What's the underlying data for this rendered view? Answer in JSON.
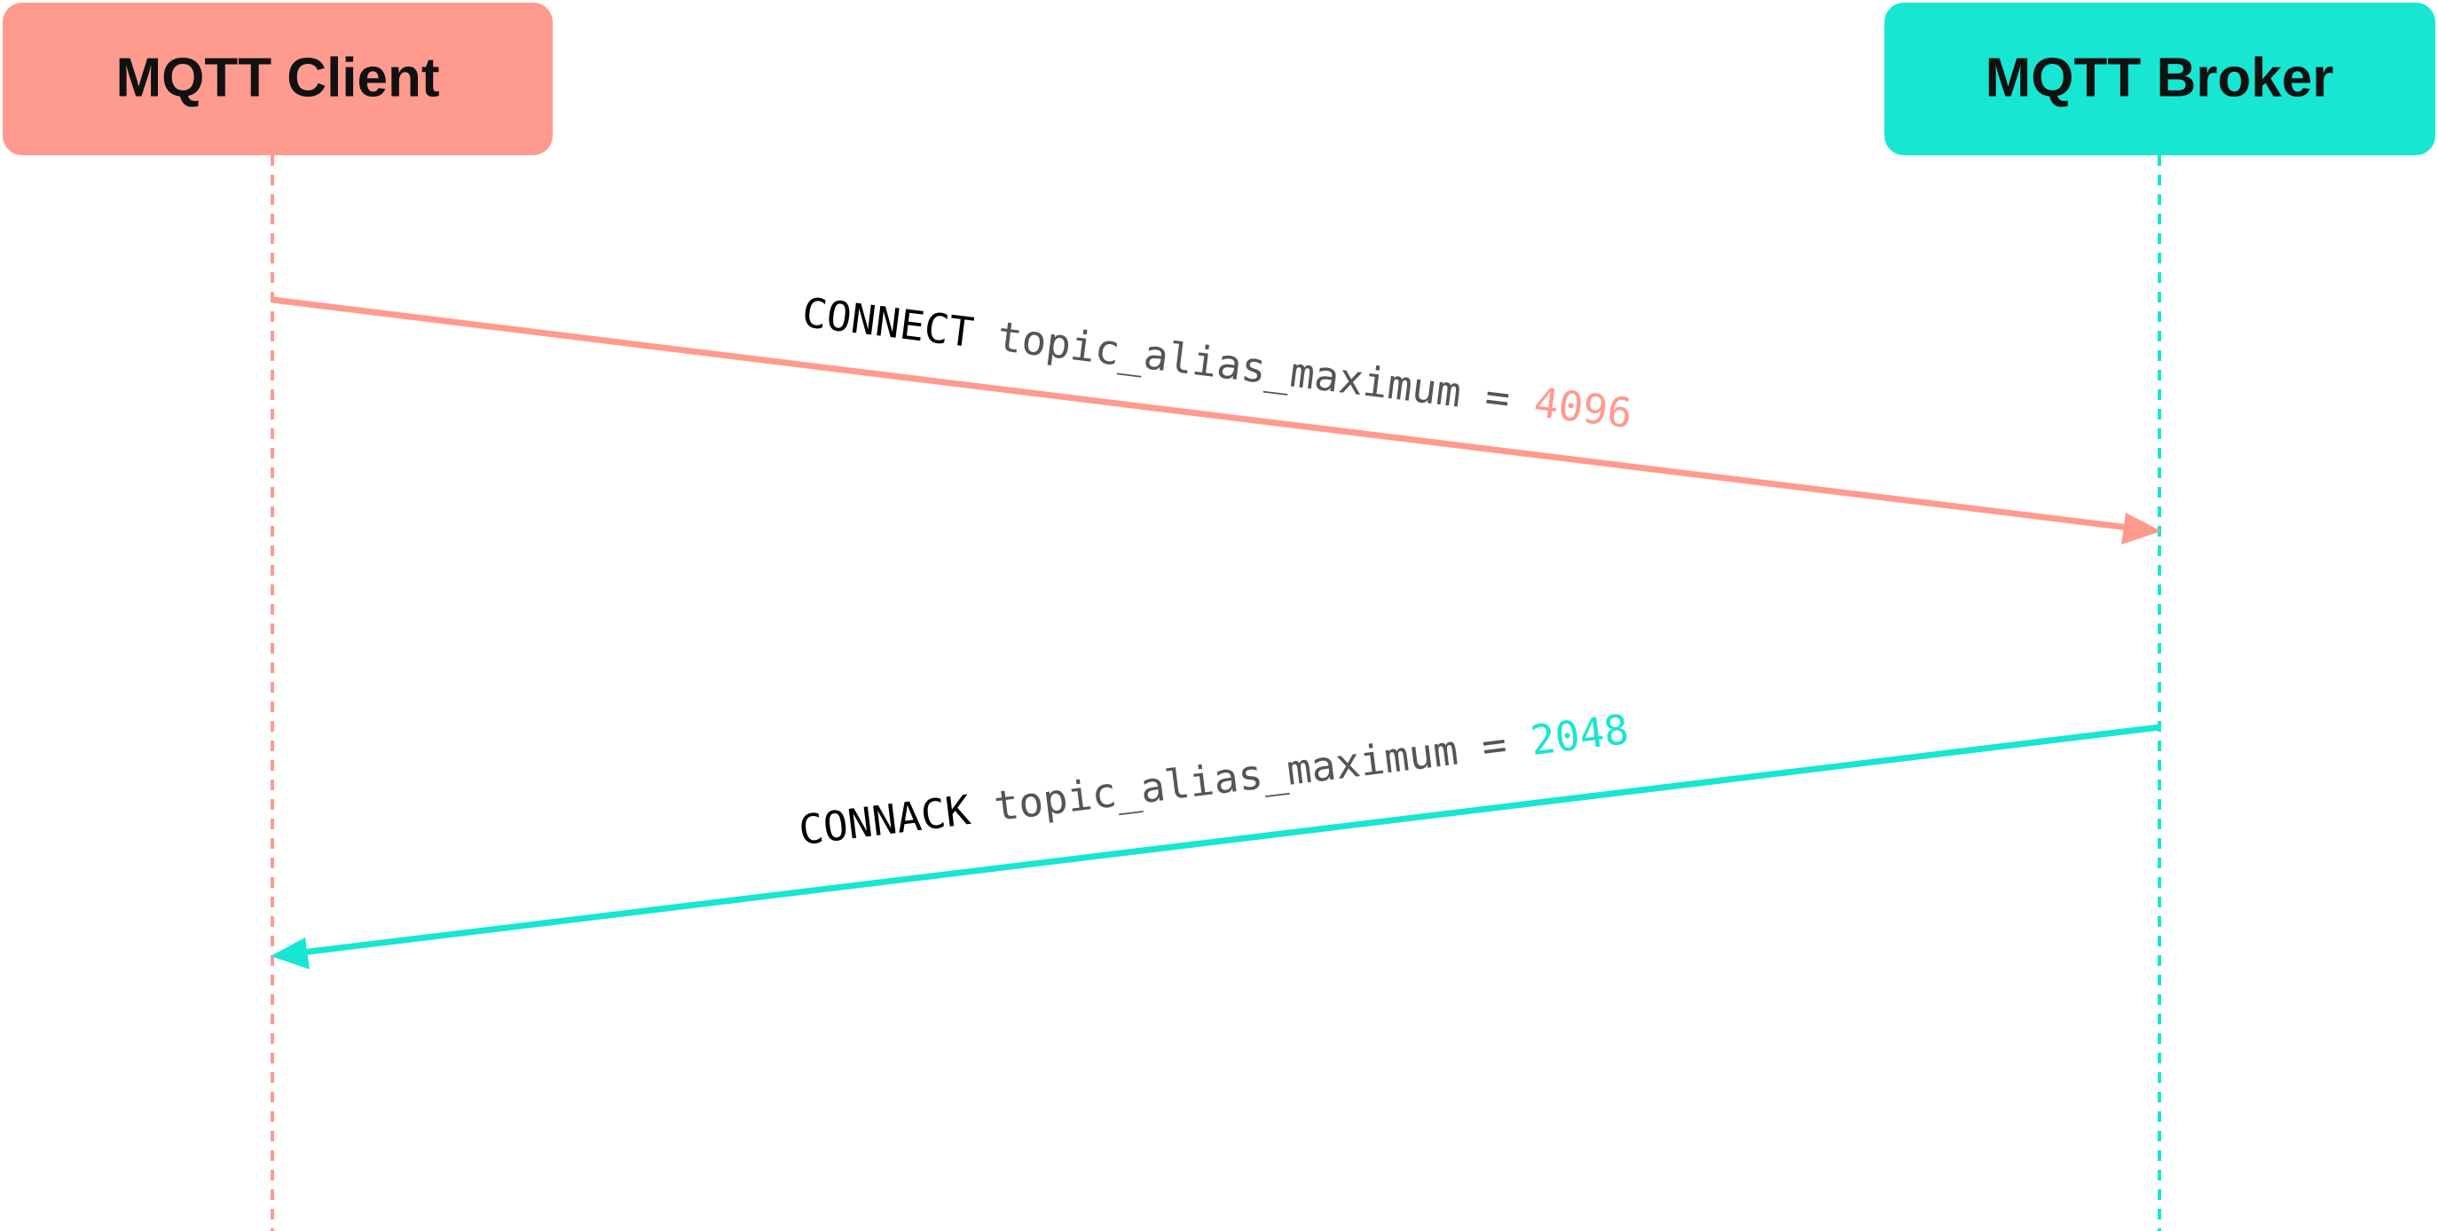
{
  "participants": [
    {
      "label": "MQTT Client",
      "color": "#ff9a8f"
    },
    {
      "label": "MQTT Broker",
      "color": "#17e6d2"
    }
  ],
  "messages": [
    {
      "packet": "CONNECT",
      "property": "topic_alias_maximum",
      "operator": "=",
      "value": "4096"
    },
    {
      "packet": "CONNACK",
      "property": "topic_alias_maximum",
      "operator": "=",
      "value": "2048"
    }
  ]
}
